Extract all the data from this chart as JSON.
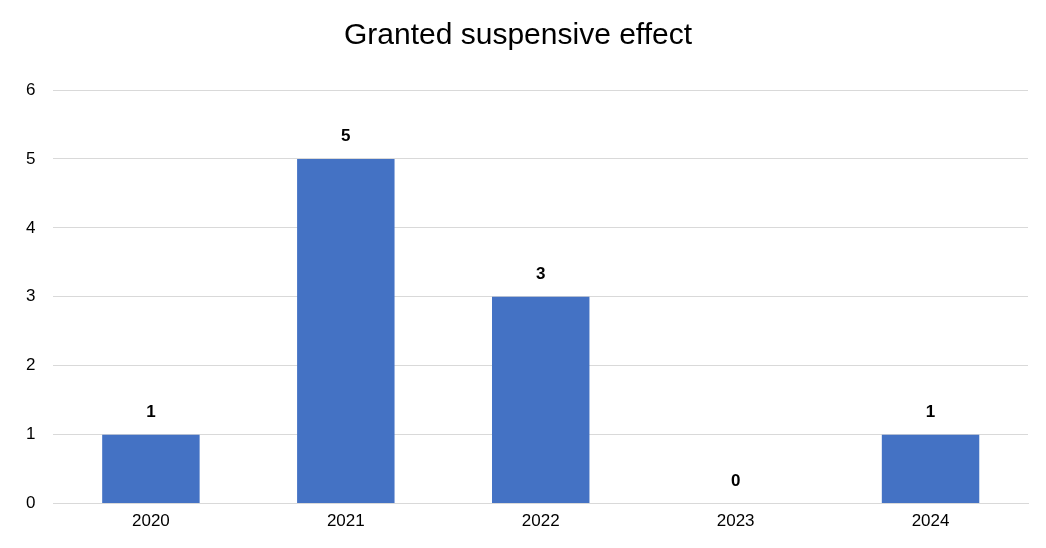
{
  "chart_data": {
    "type": "bar",
    "title": "Granted suspensive effect",
    "categories": [
      "2020",
      "2021",
      "2022",
      "2023",
      "2024"
    ],
    "values": [
      1,
      5,
      3,
      0,
      1
    ],
    "color": "#4472c4",
    "ylim": [
      0,
      6
    ],
    "yticks": [
      0,
      1,
      2,
      3,
      4,
      5,
      6
    ],
    "grid": "y",
    "data_labels": true,
    "legend": false
  }
}
